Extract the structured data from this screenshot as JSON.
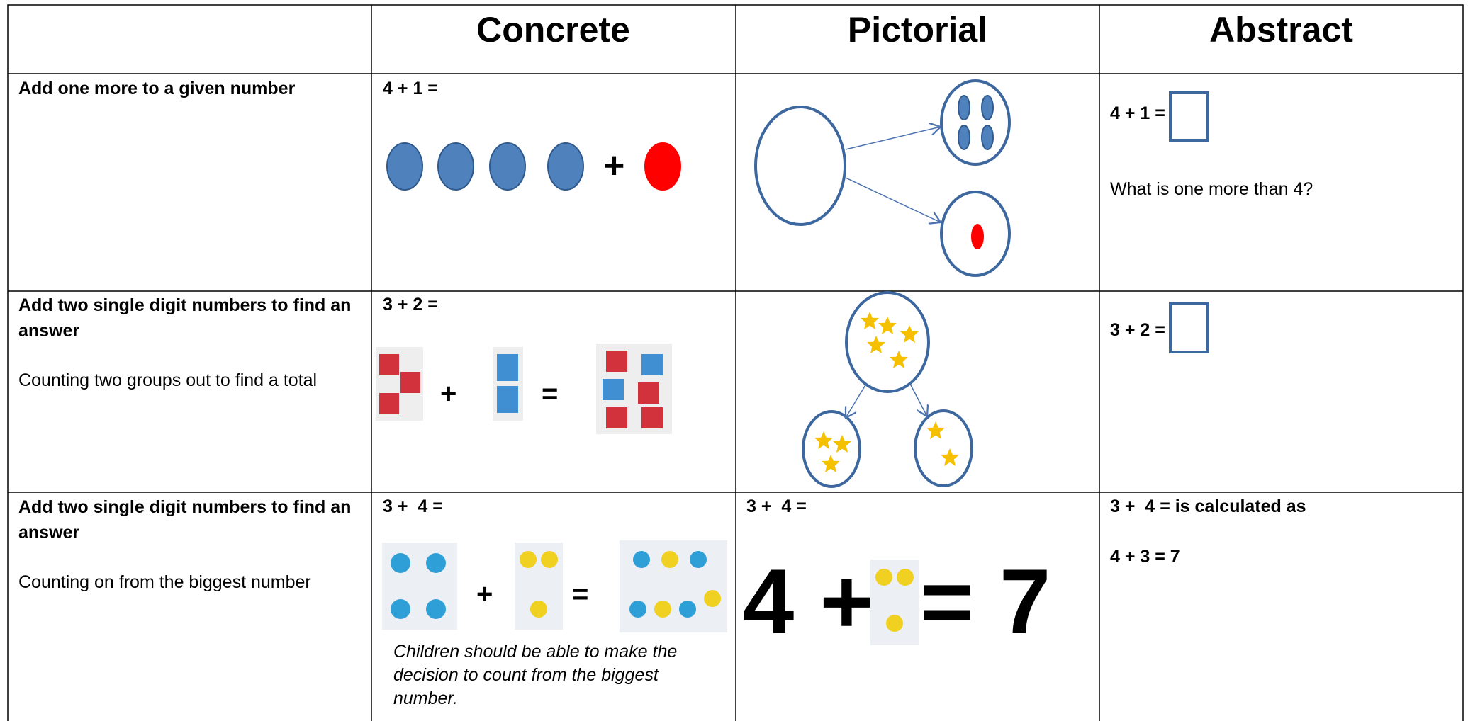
{
  "table": {
    "columns": [
      "Concrete",
      "Pictorial",
      "Abstract"
    ],
    "rows": [
      {
        "objective": "Add one more to a given number",
        "concrete": {
          "equation": "4 + 1 =",
          "plus": "+"
        },
        "abstract": {
          "equation": "4 + 1 =",
          "question": "What is one more than 4?"
        }
      },
      {
        "objective": "Add two single digit numbers to find an answer",
        "strategy": "Counting two groups out to find a total",
        "concrete": {
          "equation": "3 + 2 =",
          "plus": "+",
          "equals": "="
        },
        "abstract": {
          "equation": "3 + 2 ="
        }
      },
      {
        "objective": "Add two single digit numbers to find an answer",
        "strategy": "Counting on from the biggest number",
        "concrete": {
          "equation": "3 +  4 =",
          "plus": "+",
          "equals": "=",
          "note": "Children should be able to make the decision to count from the biggest number."
        },
        "pictorial": {
          "equation": "3 +  4 =",
          "left": "4 +",
          "right": "= 7"
        },
        "abstract": {
          "equation": "3 +  4 = is calculated as",
          "answer": "4 + 3 = 7"
        }
      }
    ]
  }
}
